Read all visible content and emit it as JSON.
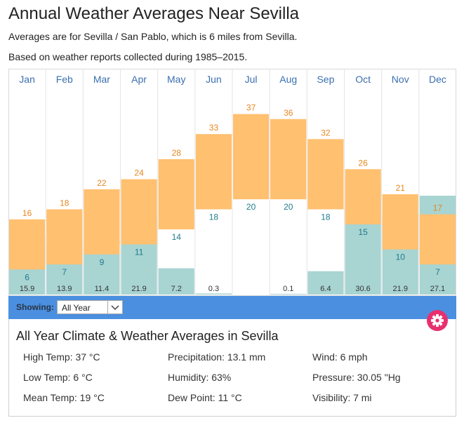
{
  "title": "Annual Weather Averages Near Sevilla",
  "subtitle_1": "Averages are for Sevilla / San Pablo, which is 6 miles from Sevilla.",
  "subtitle_2": "Based on weather reports collected during 1985–2015.",
  "colors": {
    "temp_bar": "#ffc070",
    "precip_bar": "#a8d4d2",
    "high_label": "#e8871e",
    "low_label": "#1f7a8c",
    "month_label": "#3a6fb0",
    "toolbar": "#4a8fe0",
    "gear": "#e8306e"
  },
  "chart_data": {
    "type": "bar",
    "categories": [
      "Jan",
      "Feb",
      "Mar",
      "Apr",
      "May",
      "Jun",
      "Jul",
      "Aug",
      "Sep",
      "Oct",
      "Nov",
      "Dec"
    ],
    "series": [
      {
        "name": "High",
        "values": [
          16,
          18,
          22,
          24,
          28,
          33,
          37,
          36,
          32,
          26,
          21,
          17
        ]
      },
      {
        "name": "Low",
        "values": [
          6,
          7,
          9,
          11,
          14,
          18,
          20,
          20,
          18,
          15,
          10,
          7
        ]
      },
      {
        "name": "Precipitation",
        "values": [
          "15.9",
          "13.9",
          "11.4",
          "21.9",
          "7.2",
          "0.3",
          "",
          "0.1",
          "6.4",
          "30.6",
          "21.9",
          "27.1"
        ]
      }
    ],
    "temp_ylim": [
      1,
      41
    ],
    "precip_ylim": [
      0,
      55
    ],
    "grid": true,
    "legend": "none"
  },
  "toolbar": {
    "showing_label": "Showing:",
    "selected_period": "All Year",
    "icons": {
      "dropdown": "chevron-down-icon",
      "settings": "gear-icon"
    }
  },
  "panel": {
    "title": "All Year Climate & Weather Averages in Sevilla",
    "stats": {
      "high_temp": "High Temp: 37 °C",
      "low_temp": "Low Temp: 6 °C",
      "mean_temp": "Mean Temp: 19 °C",
      "precipitation": "Precipitation: 13.1 mm",
      "humidity": "Humidity: 63%",
      "dew_point": "Dew Point: 11 °C",
      "wind": "Wind: 6 mph",
      "pressure": "Pressure: 30.05 \"Hg",
      "visibility": "Visibility: 7 mi"
    }
  }
}
